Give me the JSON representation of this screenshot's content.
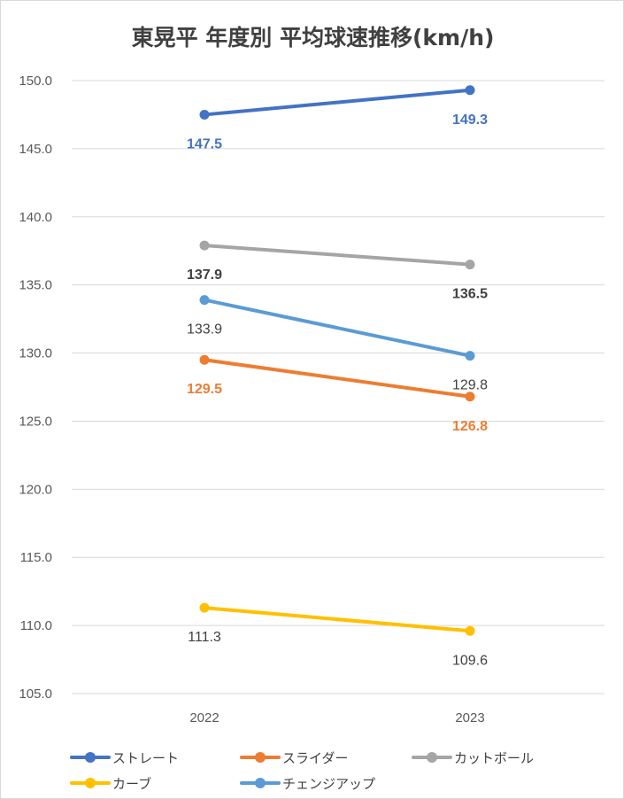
{
  "chart_data": {
    "type": "line",
    "title": "東晃平 年度別 平均球速推移(km/h)",
    "categories": [
      "2022",
      "2023"
    ],
    "ylim": [
      105.0,
      150.0
    ],
    "ytick_labels": [
      "150.0",
      "145.0",
      "140.0",
      "135.0",
      "130.0",
      "125.0",
      "120.0",
      "115.0",
      "110.0",
      "105.0"
    ],
    "grid": true,
    "legend_position": "bottom",
    "series": [
      {
        "name": "ストレート",
        "color": "#4472c4",
        "values": [
          147.5,
          149.3
        ],
        "labels": [
          "147.5",
          "149.3"
        ],
        "label_color": "#4472c4",
        "label_bold": true
      },
      {
        "name": "スライダー",
        "color": "#ed7d31",
        "values": [
          129.5,
          126.8
        ],
        "labels": [
          "129.5",
          "126.8"
        ],
        "label_color": "#ed7d31",
        "label_bold": true
      },
      {
        "name": "カットボール",
        "color": "#a5a5a5",
        "values": [
          137.9,
          136.5
        ],
        "labels": [
          "137.9",
          "136.5"
        ],
        "label_color": "#404040",
        "label_bold": true
      },
      {
        "name": "カーブ",
        "color": "#ffc000",
        "values": [
          111.3,
          109.6
        ],
        "labels": [
          "111.3",
          "109.6"
        ],
        "label_color": "#404040",
        "label_bold": false
      },
      {
        "name": "チェンジアップ",
        "color": "#5b9bd5",
        "values": [
          133.9,
          129.8
        ],
        "labels": [
          "133.9",
          "129.8"
        ],
        "label_color": "#404040",
        "label_bold": false
      }
    ]
  }
}
